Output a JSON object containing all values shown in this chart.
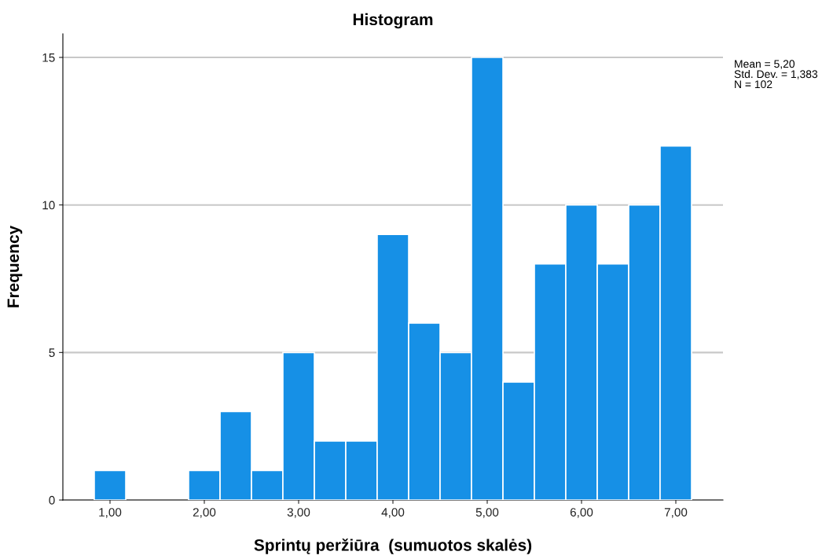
{
  "chart_data": {
    "type": "histogram",
    "title": "Histogram",
    "xlabel": "Sprintų peržiūra  (sumuotos skalės)",
    "ylabel": "Frequency",
    "bins": [
      0.833,
      1.167,
      1.5,
      1.833,
      2.167,
      2.5,
      2.833,
      3.167,
      3.5,
      3.833,
      4.167,
      4.5,
      4.833,
      5.167,
      5.5,
      5.833,
      6.167,
      6.5,
      6.833,
      7.167
    ],
    "values": [
      1,
      0,
      0,
      1,
      3,
      1,
      5,
      2,
      2,
      9,
      6,
      5,
      15,
      4,
      8,
      10,
      8,
      10,
      12
    ],
    "color": "#1690e6",
    "xlim": [
      0.5,
      7.5
    ],
    "xticks": [
      {
        "value": 1,
        "label": "1,00"
      },
      {
        "value": 2,
        "label": "2,00"
      },
      {
        "value": 3,
        "label": "3,00"
      },
      {
        "value": 4,
        "label": "4,00"
      },
      {
        "value": 5,
        "label": "5,00"
      },
      {
        "value": 6,
        "label": "6,00"
      },
      {
        "value": 7,
        "label": "7,00"
      }
    ],
    "ylim": [
      0,
      15.8
    ],
    "yticks": [
      0,
      5,
      10,
      15
    ],
    "grid": "y",
    "annotations": [
      "Mean = 5,20\nStd. Dev. = 1,383\nN = 102"
    ]
  }
}
